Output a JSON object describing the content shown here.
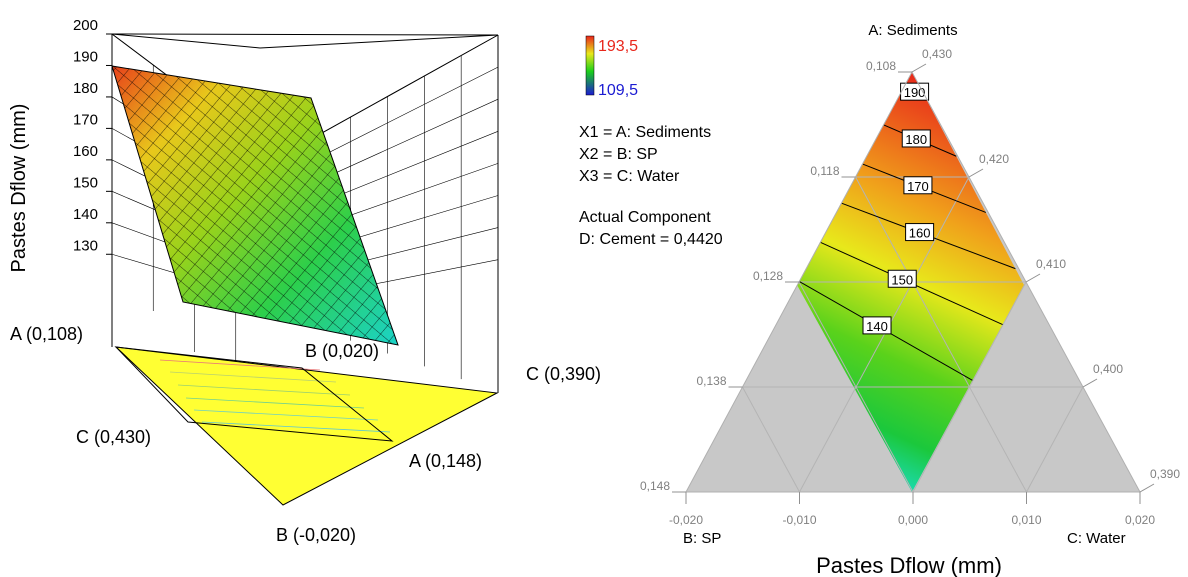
{
  "chart_data": [
    {
      "type": "surface3d",
      "zlabel": "Pastes Dflow (mm)",
      "z_ticks": [
        "200",
        "190",
        "180",
        "170",
        "160",
        "150",
        "140",
        "130"
      ],
      "zlim": [
        125,
        200
      ],
      "vertex_labels": {
        "a_high": "A (0,108)",
        "b_high": "B (0,020)",
        "c_low": "C (0,390)",
        "c_high": "C (0,430)",
        "a_low": "A (0,148)",
        "b_low": "B (-0,020)"
      },
      "surface_corners": [
        {
          "a": 0.108,
          "b": 0.02,
          "c": 0.43,
          "z": 189
        },
        {
          "a": 0.118,
          "b": 0.02,
          "c": 0.42,
          "z": 180
        },
        {
          "a": 0.148,
          "b": -0.02,
          "c": 0.43,
          "z": 134
        },
        {
          "a": 0.138,
          "b": -0.02,
          "c": 0.44,
          "z": 110
        }
      ],
      "colors": {
        "high": "#e8261b",
        "mid_high": "#e8e81b",
        "mid": "#1bcf1b",
        "low": "#1bd2d2",
        "base": "#ffff33"
      }
    },
    {
      "type": "ternary_contour",
      "xlabel": "Pastes Dflow (mm)",
      "corner_labels": {
        "top": "A: Sediments",
        "left": "B: SP",
        "right": "C: Water"
      },
      "left_axis_ticks": [
        "0,108",
        "0,118",
        "0,128",
        "0,138",
        "0,148"
      ],
      "right_axis_ticks": [
        "0,430",
        "0,420",
        "0,410",
        "0,400",
        "0,390"
      ],
      "bottom_axis_ticks": [
        "-0,020",
        "-0,010",
        "0,000",
        "0,010",
        "0,020"
      ],
      "contour_levels": [
        {
          "value": 190,
          "label": "190"
        },
        {
          "value": 180,
          "label": "180"
        },
        {
          "value": 170,
          "label": "170"
        },
        {
          "value": 160,
          "label": "160"
        },
        {
          "value": 150,
          "label": "150"
        },
        {
          "value": 140,
          "label": "140"
        }
      ],
      "colorbar": {
        "max": "193,5",
        "min": "109,5",
        "max_color": "#e8261b",
        "min_color": "#1b1bd2"
      },
      "legend_lines": [
        "X1 = A: Sediments",
        "X2 = B: SP",
        "X3 = C: Water",
        "",
        "Actual Component",
        "D: Cement = 0,4420"
      ],
      "feasible_region": "band between B = 0,000 and C = 0,410 lines",
      "excluded_color": "#c8c8c8"
    }
  ]
}
